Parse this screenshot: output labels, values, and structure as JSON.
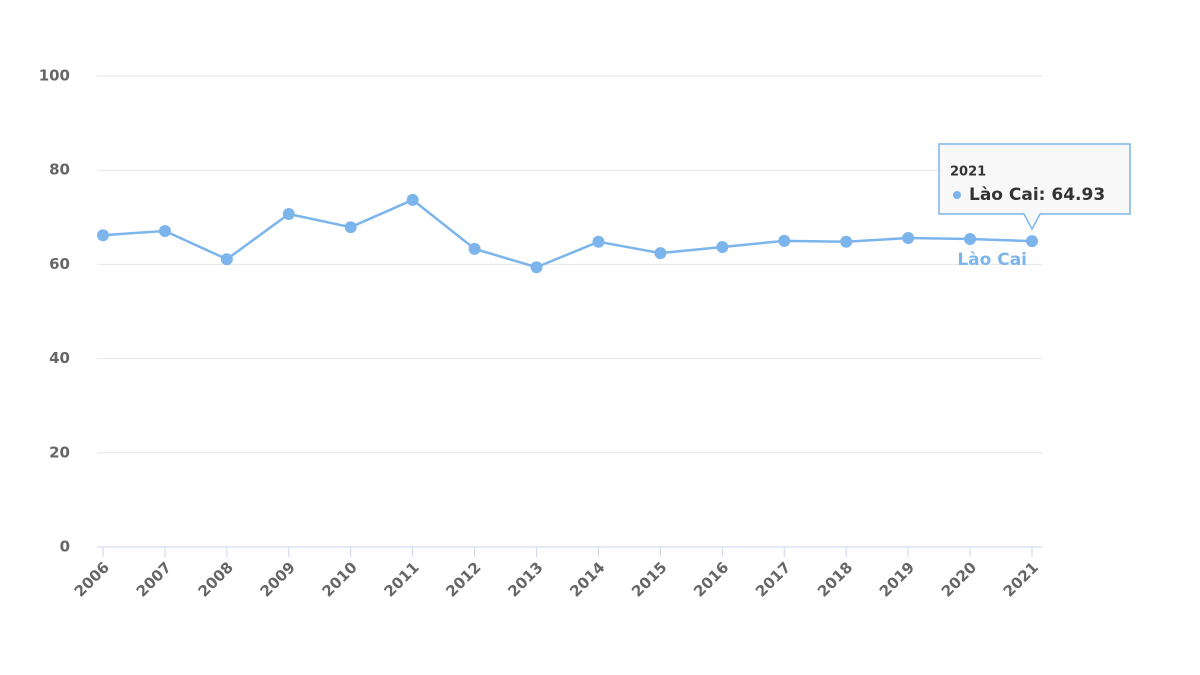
{
  "chart_data": {
    "type": "line",
    "categories": [
      "2006",
      "2007",
      "2008",
      "2009",
      "2010",
      "2011",
      "2012",
      "2013",
      "2014",
      "2015",
      "2016",
      "2017",
      "2018",
      "2019",
      "2020",
      "2021"
    ],
    "series": [
      {
        "name": "Lào Cai",
        "color": "#7cb5ec",
        "values": [
          66.2,
          67.1,
          61.1,
          70.7,
          67.9,
          73.7,
          63.3,
          59.4,
          64.8,
          62.4,
          63.7,
          65.0,
          64.8,
          65.6,
          65.4,
          64.93
        ]
      }
    ],
    "ylim": [
      0,
      100
    ],
    "yticks": [
      0,
      20,
      40,
      60,
      80,
      100
    ],
    "grid": true,
    "tooltip": {
      "header": "2021",
      "label": "Lào Cai: 64.93"
    }
  }
}
